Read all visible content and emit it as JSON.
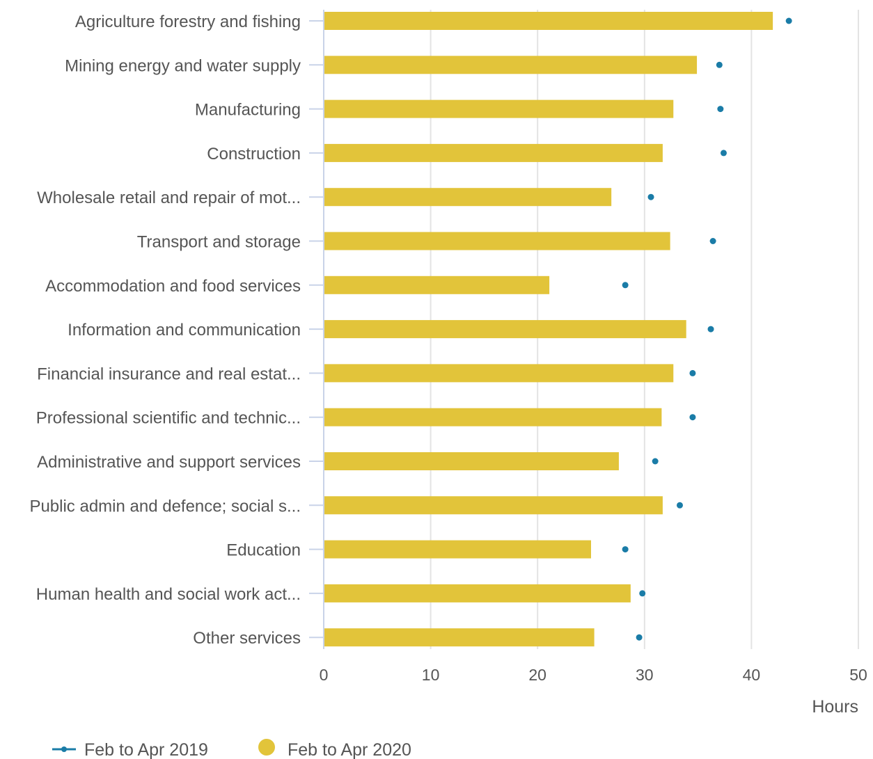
{
  "chart_data": {
    "type": "bar",
    "orientation": "horizontal",
    "categories": [
      "Agriculture forestry and fishing",
      "Mining energy and water supply",
      "Manufacturing",
      "Construction",
      "Wholesale retail and repair of mot...",
      "Transport and storage",
      "Accommodation and food services",
      "Information and communication",
      "Financial insurance and real estat...",
      "Professional scientific and technic...",
      "Administrative and support services",
      "Public admin and defence; social s...",
      "Education",
      "Human health and social work act...",
      "Other services"
    ],
    "series": [
      {
        "name": "Feb to Apr 2020",
        "kind": "bar",
        "color": "#e2c43a",
        "values": [
          42.0,
          34.9,
          32.7,
          31.7,
          26.9,
          32.4,
          21.1,
          33.9,
          32.7,
          31.6,
          27.6,
          31.7,
          25.0,
          28.7,
          25.3
        ]
      },
      {
        "name": "Feb to Apr 2019",
        "kind": "dot",
        "color": "#1a7ca7",
        "values": [
          43.5,
          37.0,
          37.1,
          37.4,
          30.6,
          36.4,
          28.2,
          36.2,
          34.5,
          34.5,
          31.0,
          33.3,
          28.2,
          29.8,
          29.5
        ]
      }
    ],
    "xlabel": "Hours",
    "xlim": [
      0,
      50
    ],
    "xticks": [
      "0",
      "10",
      "20",
      "30",
      "40",
      "50"
    ],
    "grid": "vertical",
    "legend": "bottom-left"
  }
}
